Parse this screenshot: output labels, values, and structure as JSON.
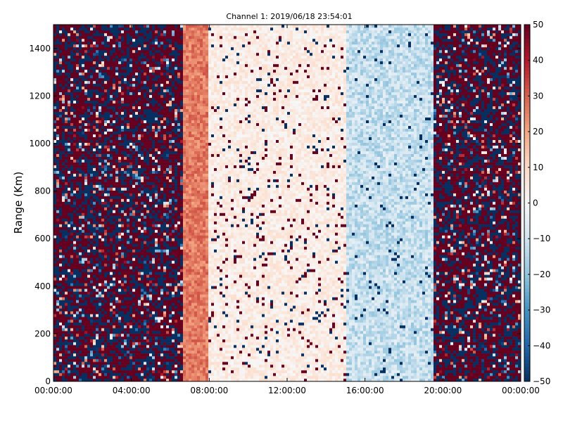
{
  "chart_data": {
    "type": "heatmap",
    "title": "Channel 1: 2019/06/18 23:54:01",
    "xlabel": "",
    "ylabel": "Range (Km)",
    "x_range": [
      "00:00:00",
      "00:00:00"
    ],
    "x_ticks": [
      "00:00:00",
      "04:00:00",
      "08:00:00",
      "12:00:00",
      "16:00:00",
      "20:00:00",
      "00:00:00"
    ],
    "x_tick_hours": [
      0,
      4,
      8,
      12,
      16,
      20,
      24
    ],
    "ylim": [
      0,
      1500
    ],
    "y_ticks": [
      0,
      200,
      400,
      600,
      800,
      1000,
      1200,
      1400
    ],
    "colorbar": {
      "colormap": "RdBu_r",
      "range": [
        -50,
        50
      ],
      "ticks": [
        50,
        40,
        30,
        20,
        10,
        0,
        -10,
        -20,
        -30,
        -40,
        -50
      ]
    },
    "grid": false,
    "description_of_data": [
      {
        "from": "00:00:00",
        "to": "06:40:00",
        "pattern": "saturated noise, mix of -50 and +50"
      },
      {
        "from": "06:40:00",
        "to": "08:00:00",
        "pattern": "strong positive, ~+20 to +30"
      },
      {
        "from": "08:00:00",
        "to": "15:00:00",
        "pattern": "weak positive, ~0 to +10, scattered strong pixels"
      },
      {
        "from": "15:00:00",
        "to": "19:30:00",
        "pattern": "weak to moderate negative, ~-5 to -20"
      },
      {
        "from": "19:30:00",
        "to": "00:00:00",
        "pattern": "saturated noise, mix of -50 and +50"
      }
    ]
  }
}
